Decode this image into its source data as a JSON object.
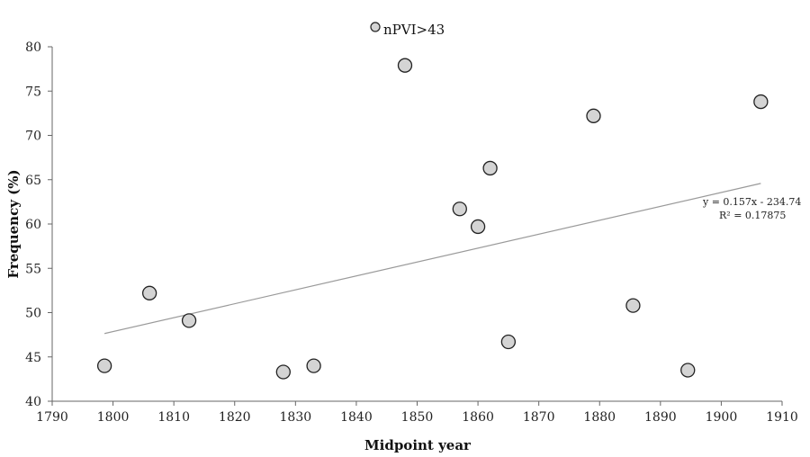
{
  "chart_data": {
    "type": "scatter",
    "title": "",
    "xlabel": "Midpoint year",
    "ylabel": "Frequency (%)",
    "xlim": [
      1790,
      1910
    ],
    "ylim": [
      40,
      80
    ],
    "x_ticks": [
      "1790",
      "1800",
      "1810",
      "1820",
      "1830",
      "1840",
      "1850",
      "1860",
      "1870",
      "1880",
      "1890",
      "1900",
      "1910"
    ],
    "y_ticks": [
      "40",
      "45",
      "50",
      "55",
      "60",
      "65",
      "70",
      "75",
      "80"
    ],
    "grid": false,
    "legend_position": "top-center",
    "series": [
      {
        "name": "nPVI>43",
        "color": "#d4d4d4",
        "x": [
          1798.6,
          1806.0,
          1812.5,
          1828.0,
          1833.0,
          1848.0,
          1857.0,
          1860.0,
          1862.0,
          1865.0,
          1879.0,
          1885.5,
          1894.5,
          1906.5
        ],
        "y": [
          44.0,
          52.2,
          49.1,
          43.3,
          44.0,
          77.9,
          61.7,
          59.7,
          66.3,
          46.7,
          72.2,
          50.8,
          43.5,
          73.8
        ]
      }
    ],
    "trendline": {
      "color": "#9a9a9a",
      "x_start": 1798.6,
      "x_end": 1906.5,
      "equation": "y = 0.157x - 234.74",
      "r_squared": "R² = 0.17875"
    }
  }
}
